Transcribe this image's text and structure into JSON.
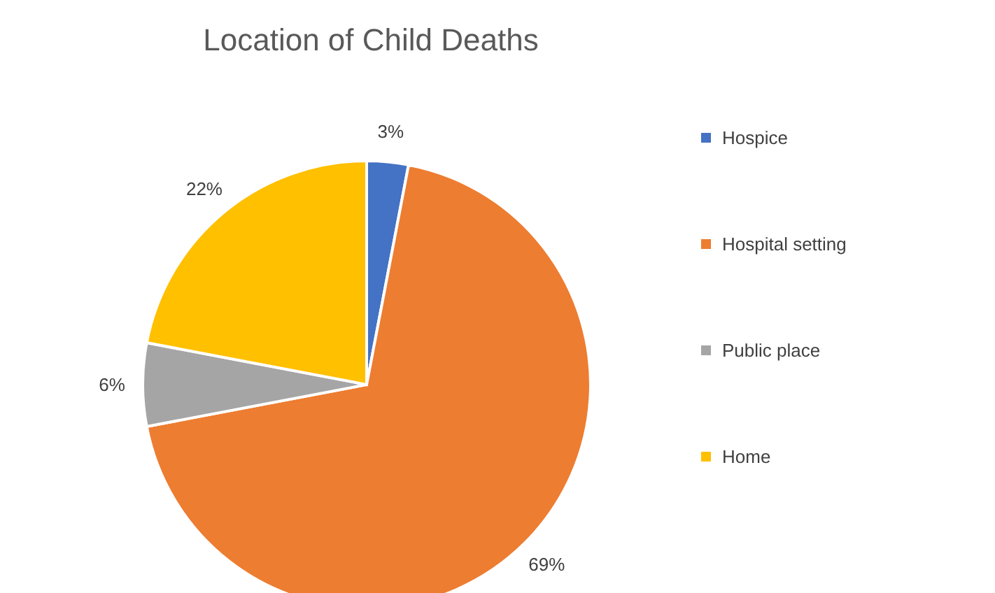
{
  "chart_data": {
    "type": "pie",
    "title": "Location of Child Deaths",
    "categories": [
      "Hospice",
      "Hospital setting",
      "Public place",
      "Home"
    ],
    "values": [
      3,
      69,
      6,
      22
    ],
    "colors": [
      "#4472c4",
      "#ed7d31",
      "#a5a5a5",
      "#ffc000"
    ],
    "value_labels": [
      "3%",
      "69%",
      "6%",
      "22%"
    ],
    "legend": "right"
  }
}
